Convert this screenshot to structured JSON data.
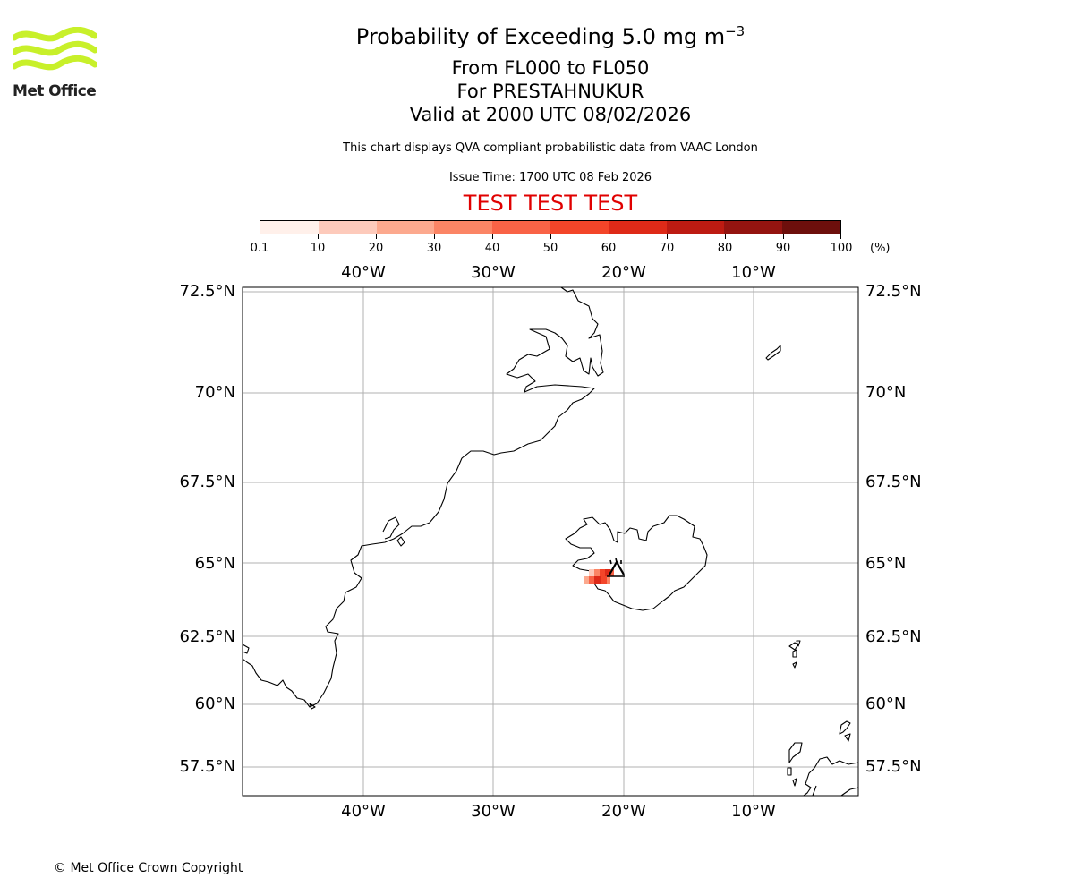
{
  "header": {
    "title_prefix": "Probability of Exceeding 5.0 mg m",
    "title_exponent": "−3",
    "line2": "From FL000 to FL050",
    "line3": "For PRESTAHNUKUR",
    "line4": "Valid at 2000 UTC 08/02/2026",
    "subtitle": "This chart displays QVA compliant probabilistic data from VAAC London",
    "issue_time": "Issue Time: 1700 UTC 08 Feb 2026",
    "test_banner": "TEST TEST TEST"
  },
  "logo": {
    "text": "Met Office",
    "color": "#c8f02a"
  },
  "colorbar": {
    "unit": "(%)",
    "ticks": [
      "0.1",
      "10",
      "20",
      "30",
      "40",
      "50",
      "60",
      "70",
      "80",
      "90",
      "100"
    ],
    "colors": [
      "#fff0ea",
      "#fdcabb",
      "#fca98e",
      "#fb8565",
      "#f96346",
      "#f34529",
      "#de2a18",
      "#bd1b12",
      "#941410",
      "#6d0f0c"
    ]
  },
  "map": {
    "lon_labels": [
      "40°W",
      "30°W",
      "20°W",
      "10°W"
    ],
    "lat_labels": [
      "72.5°N",
      "70°N",
      "67.5°N",
      "65°N",
      "62.5°N",
      "60°N",
      "57.5°N"
    ],
    "volcano": "PRESTAHNUKUR"
  },
  "footer": {
    "copyright": "© Met Office Crown Copyright"
  }
}
